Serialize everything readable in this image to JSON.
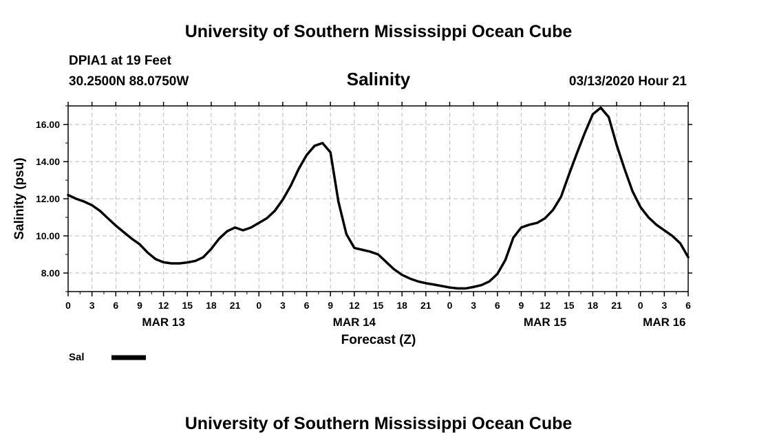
{
  "header": {
    "title": "University of Southern Mississippi Ocean Cube",
    "station": "DPIA1 at 19 Feet",
    "coords": "30.2500N 88.0750W",
    "timestamp": "03/13/2020 Hour 21"
  },
  "footer": {
    "title": "University of Southern Mississippi Ocean Cube"
  },
  "colors": {
    "line": "#000000",
    "grid": "#bbbbbb"
  },
  "chart_data": {
    "type": "line",
    "title": "Salinity",
    "xlabel": "Forecast (Z)",
    "ylabel": "Salinity (psu)",
    "xlim": [
      0,
      78
    ],
    "ylim": [
      7,
      17
    ],
    "grid": true,
    "x_ticks": [
      {
        "x": 0,
        "label": "0"
      },
      {
        "x": 3,
        "label": "3"
      },
      {
        "x": 6,
        "label": "6"
      },
      {
        "x": 9,
        "label": "9"
      },
      {
        "x": 12,
        "label": "12"
      },
      {
        "x": 15,
        "label": "15"
      },
      {
        "x": 18,
        "label": "18"
      },
      {
        "x": 21,
        "label": "21"
      },
      {
        "x": 24,
        "label": "0"
      },
      {
        "x": 27,
        "label": "3"
      },
      {
        "x": 30,
        "label": "6"
      },
      {
        "x": 33,
        "label": "9"
      },
      {
        "x": 36,
        "label": "12"
      },
      {
        "x": 39,
        "label": "15"
      },
      {
        "x": 42,
        "label": "18"
      },
      {
        "x": 45,
        "label": "21"
      },
      {
        "x": 48,
        "label": "0"
      },
      {
        "x": 51,
        "label": "3"
      },
      {
        "x": 54,
        "label": "6"
      },
      {
        "x": 57,
        "label": "9"
      },
      {
        "x": 60,
        "label": "12"
      },
      {
        "x": 63,
        "label": "15"
      },
      {
        "x": 66,
        "label": "18"
      },
      {
        "x": 69,
        "label": "21"
      },
      {
        "x": 72,
        "label": "0"
      },
      {
        "x": 75,
        "label": "3"
      },
      {
        "x": 78,
        "label": "6"
      }
    ],
    "y_ticks": [
      {
        "y": 8,
        "label": "8.00"
      },
      {
        "y": 10,
        "label": "10.00"
      },
      {
        "y": 12,
        "label": "12.00"
      },
      {
        "y": 14,
        "label": "14.00"
      },
      {
        "y": 16,
        "label": "16.00"
      }
    ],
    "day_labels": [
      {
        "x": 12,
        "label": "MAR 13"
      },
      {
        "x": 36,
        "label": "MAR 14"
      },
      {
        "x": 60,
        "label": "MAR 15"
      },
      {
        "x": 75,
        "label": "MAR 16"
      }
    ],
    "series": [
      {
        "name": "Sal",
        "x": [
          0,
          1,
          2,
          3,
          4,
          5,
          6,
          7,
          8,
          9,
          10,
          11,
          12,
          13,
          14,
          15,
          16,
          17,
          18,
          19,
          20,
          21,
          22,
          23,
          24,
          25,
          26,
          27,
          28,
          29,
          30,
          31,
          32,
          33,
          34,
          35,
          36,
          37,
          38,
          39,
          40,
          41,
          42,
          43,
          44,
          45,
          46,
          47,
          48,
          49,
          50,
          51,
          52,
          53,
          54,
          55,
          56,
          57,
          58,
          59,
          60,
          61,
          62,
          63,
          64,
          65,
          66,
          67,
          68,
          69,
          70,
          71,
          72,
          73,
          74,
          75,
          76,
          77,
          78
        ],
        "values": [
          12.2,
          12.0,
          11.85,
          11.65,
          11.35,
          10.95,
          10.55,
          10.2,
          9.85,
          9.55,
          9.1,
          8.75,
          8.58,
          8.52,
          8.52,
          8.57,
          8.65,
          8.85,
          9.3,
          9.85,
          10.25,
          10.45,
          10.3,
          10.45,
          10.7,
          10.95,
          11.35,
          11.95,
          12.7,
          13.6,
          14.35,
          14.85,
          15.0,
          14.5,
          11.85,
          10.1,
          9.35,
          9.25,
          9.15,
          9.0,
          8.6,
          8.2,
          7.9,
          7.7,
          7.55,
          7.45,
          7.38,
          7.3,
          7.22,
          7.17,
          7.17,
          7.25,
          7.35,
          7.55,
          7.95,
          8.7,
          9.9,
          10.45,
          10.6,
          10.7,
          10.95,
          11.4,
          12.1,
          13.3,
          14.45,
          15.55,
          16.55,
          16.9,
          16.4,
          14.9,
          13.6,
          12.4,
          11.55,
          11.0,
          10.6,
          10.3,
          10.0,
          9.6,
          8.85
        ]
      }
    ],
    "legend": {
      "label": "Sal",
      "placement": "bottom-left"
    }
  }
}
